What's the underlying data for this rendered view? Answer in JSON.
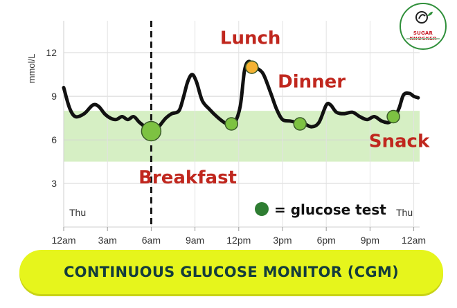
{
  "chart_data": {
    "type": "line",
    "ylabel": "mmol/L",
    "y_ticks": [
      3,
      6,
      9,
      12
    ],
    "ylim": [
      0,
      14.2
    ],
    "x_ticks": [
      "12am",
      "3am",
      "6am",
      "9am",
      "12pm",
      "3pm",
      "6pm",
      "9pm",
      "12am"
    ],
    "xlim_hours": [
      0,
      24.4
    ],
    "day_labels": [
      "Thu",
      "Thu"
    ],
    "grid": "horizontal and vertical",
    "target_range": [
      4.5,
      8
    ],
    "target_range_color": "#d6efc4",
    "line_color": "#111111",
    "annotation_color": "#c0271e",
    "series": [
      {
        "points": [
          [
            0,
            9.6
          ],
          [
            0.4,
            8.2
          ],
          [
            0.8,
            7.6
          ],
          [
            1.4,
            7.8
          ],
          [
            2.0,
            8.4
          ],
          [
            2.4,
            8.3
          ],
          [
            2.8,
            7.8
          ],
          [
            3.2,
            7.5
          ],
          [
            3.6,
            7.4
          ],
          [
            4.0,
            7.6
          ],
          [
            4.4,
            7.4
          ],
          [
            4.8,
            7.6
          ],
          [
            5.2,
            7.2
          ],
          [
            5.7,
            6.8
          ],
          [
            6.0,
            6.6
          ],
          [
            6.3,
            6.6
          ],
          [
            6.6,
            7.0
          ],
          [
            7.0,
            7.5
          ],
          [
            7.4,
            7.8
          ],
          [
            7.9,
            8.0
          ],
          [
            8.2,
            8.9
          ],
          [
            8.5,
            10.0
          ],
          [
            8.8,
            10.5
          ],
          [
            9.1,
            10.0
          ],
          [
            9.5,
            8.7
          ],
          [
            10.0,
            8.1
          ],
          [
            10.5,
            7.6
          ],
          [
            11.0,
            7.2
          ],
          [
            11.4,
            7.0
          ],
          [
            11.7,
            7.1
          ],
          [
            12.1,
            8.3
          ],
          [
            12.4,
            10.8
          ],
          [
            12.7,
            11.4
          ],
          [
            13.0,
            11.0
          ],
          [
            13.3,
            10.9
          ],
          [
            13.7,
            10.5
          ],
          [
            14.2,
            9.2
          ],
          [
            14.6,
            8.1
          ],
          [
            15.0,
            7.4
          ],
          [
            15.5,
            7.3
          ],
          [
            16.0,
            7.2
          ],
          [
            16.5,
            7.1
          ],
          [
            17.0,
            6.9
          ],
          [
            17.5,
            7.2
          ],
          [
            18.0,
            8.4
          ],
          [
            18.3,
            8.4
          ],
          [
            18.7,
            7.9
          ],
          [
            19.2,
            7.8
          ],
          [
            19.8,
            7.9
          ],
          [
            20.3,
            7.6
          ],
          [
            20.8,
            7.4
          ],
          [
            21.3,
            7.6
          ],
          [
            21.8,
            7.3
          ],
          [
            22.3,
            7.2
          ],
          [
            22.7,
            7.6
          ],
          [
            23.0,
            8.2
          ],
          [
            23.3,
            9.1
          ],
          [
            23.7,
            9.2
          ],
          [
            24.0,
            9.0
          ],
          [
            24.3,
            8.9
          ]
        ]
      }
    ],
    "glucose_tests": [
      {
        "x": 6.0,
        "y": 6.6,
        "size": "large",
        "color": "#7dc242"
      },
      {
        "x": 11.5,
        "y": 7.1,
        "size": "small",
        "color": "#7dc242"
      },
      {
        "x": 12.9,
        "y": 11.0,
        "size": "small",
        "color": "#f4b233"
      },
      {
        "x": 16.2,
        "y": 7.1,
        "size": "small",
        "color": "#7dc242"
      },
      {
        "x": 22.6,
        "y": 7.6,
        "size": "small",
        "color": "#7dc242"
      }
    ],
    "meal_marker_x": 6.0,
    "annotations": [
      {
        "text": "Breakfast",
        "x": 8.5,
        "y": 3.0
      },
      {
        "text": "Lunch",
        "x": 12.8,
        "y": 12.6
      },
      {
        "text": "Dinner",
        "x": 17.0,
        "y": 9.6
      },
      {
        "text": "Snack",
        "x": 23.0,
        "y": 5.5
      }
    ],
    "legend_text": "= glucose test",
    "legend_marker_color": "#2e7d32",
    "legend_position": "bottom-right"
  },
  "banner": {
    "title": "CONTINUOUS GLUCOSE MONITOR (CGM)",
    "background": "#e6f51c"
  },
  "logo": {
    "name": "SUGAR KNOCKER",
    "colors": [
      "#2f8f3a",
      "#c8202a"
    ]
  }
}
